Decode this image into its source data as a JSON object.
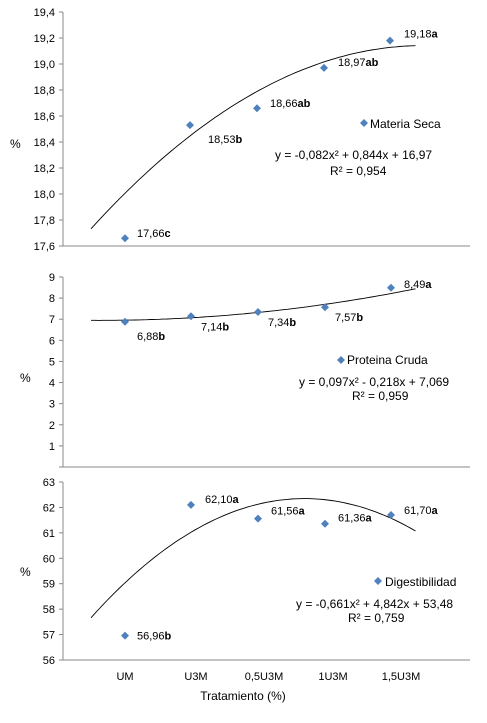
{
  "x_axis_title": "Tratamiento (%)",
  "chart_data": [
    {
      "type": "scatter",
      "categories": [
        "UM",
        "U3M",
        "0,5U3M",
        "1U3M",
        "1,5U3M"
      ],
      "ylabel": "%",
      "ylim": [
        17.6,
        19.4
      ],
      "yticks": [
        17.6,
        17.8,
        18.0,
        18.2,
        18.4,
        18.6,
        18.8,
        19.0,
        19.2,
        19.4
      ],
      "ytick_labels": [
        "17,6",
        "17,8",
        "18,0",
        "18,2",
        "18,4",
        "18,6",
        "18,8",
        "19,0",
        "19,2",
        "19,4"
      ],
      "grid": false,
      "x_positions": [
        1,
        2.5,
        3.5,
        4.5,
        5.5
      ],
      "series": [
        {
          "name": "Materia Seca",
          "values": [
            17.66,
            18.53,
            18.66,
            18.97,
            19.18
          ]
        }
      ],
      "point_labels": [
        {
          "value": "17,66",
          "group": "c"
        },
        {
          "value": "18,53",
          "group": "b"
        },
        {
          "value": "18,66",
          "group": "ab"
        },
        {
          "value": "18,97",
          "group": "ab"
        },
        {
          "value": "19,18",
          "group": "a"
        }
      ],
      "trendline": {
        "equation": "y = -0,082x² + 0,844x + 16,97",
        "r2": "R² = 0,954",
        "coefficients": [
          -0.082,
          0.844,
          16.97
        ]
      },
      "legend_position": "right"
    },
    {
      "type": "scatter",
      "categories": [
        "UM",
        "U3M",
        "0,5U3M",
        "1U3M",
        "1,5U3M"
      ],
      "ylabel": "%",
      "ylim": [
        0,
        9
      ],
      "yticks": [
        0,
        1,
        2,
        3,
        4,
        5,
        6,
        7,
        8,
        9
      ],
      "ytick_labels": [
        "",
        "1",
        "2",
        "3",
        "4",
        "5",
        "6",
        "7",
        "8",
        "9"
      ],
      "grid": false,
      "x_positions": [
        1,
        2,
        3,
        4,
        5
      ],
      "series": [
        {
          "name": "Proteina Cruda",
          "values": [
            6.88,
            7.14,
            7.34,
            7.57,
            8.49
          ]
        }
      ],
      "point_labels": [
        {
          "value": "6,88",
          "group": "b"
        },
        {
          "value": "7,14",
          "group": "b"
        },
        {
          "value": "7,34",
          "group": "b"
        },
        {
          "value": "7,57",
          "group": "b"
        },
        {
          "value": "8,49",
          "group": "a"
        }
      ],
      "trendline": {
        "equation": "y = 0,097x² - 0,218x + 7,069",
        "r2": "R² = 0,959",
        "coefficients": [
          0.097,
          -0.218,
          7.069
        ]
      },
      "legend_position": "right"
    },
    {
      "type": "scatter",
      "categories": [
        "UM",
        "U3M",
        "0,5U3M",
        "1U3M",
        "1,5U3M"
      ],
      "ylabel": "%",
      "ylim": [
        56,
        63
      ],
      "yticks": [
        56,
        57,
        58,
        59,
        60,
        61,
        62,
        63
      ],
      "ytick_labels": [
        "56",
        "57",
        "58",
        "59",
        "60",
        "61",
        "62",
        "63"
      ],
      "grid": false,
      "x_positions": [
        1,
        2,
        3,
        4,
        5
      ],
      "series": [
        {
          "name": "Digestibilidad",
          "values": [
            56.96,
            62.1,
            61.56,
            61.36,
            61.7
          ]
        }
      ],
      "point_labels": [
        {
          "value": "56,96",
          "group": "b"
        },
        {
          "value": "62,10",
          "group": "a"
        },
        {
          "value": "61,56",
          "group": "a"
        },
        {
          "value": "61,36",
          "group": "a"
        },
        {
          "value": "61,70",
          "group": "a"
        }
      ],
      "trendline": {
        "equation": "y = -0,661x² + 4,842x + 53,48",
        "r2": "R² = 0,759",
        "coefficients": [
          -0.661,
          4.842,
          53.48
        ]
      },
      "legend_position": "right"
    }
  ]
}
